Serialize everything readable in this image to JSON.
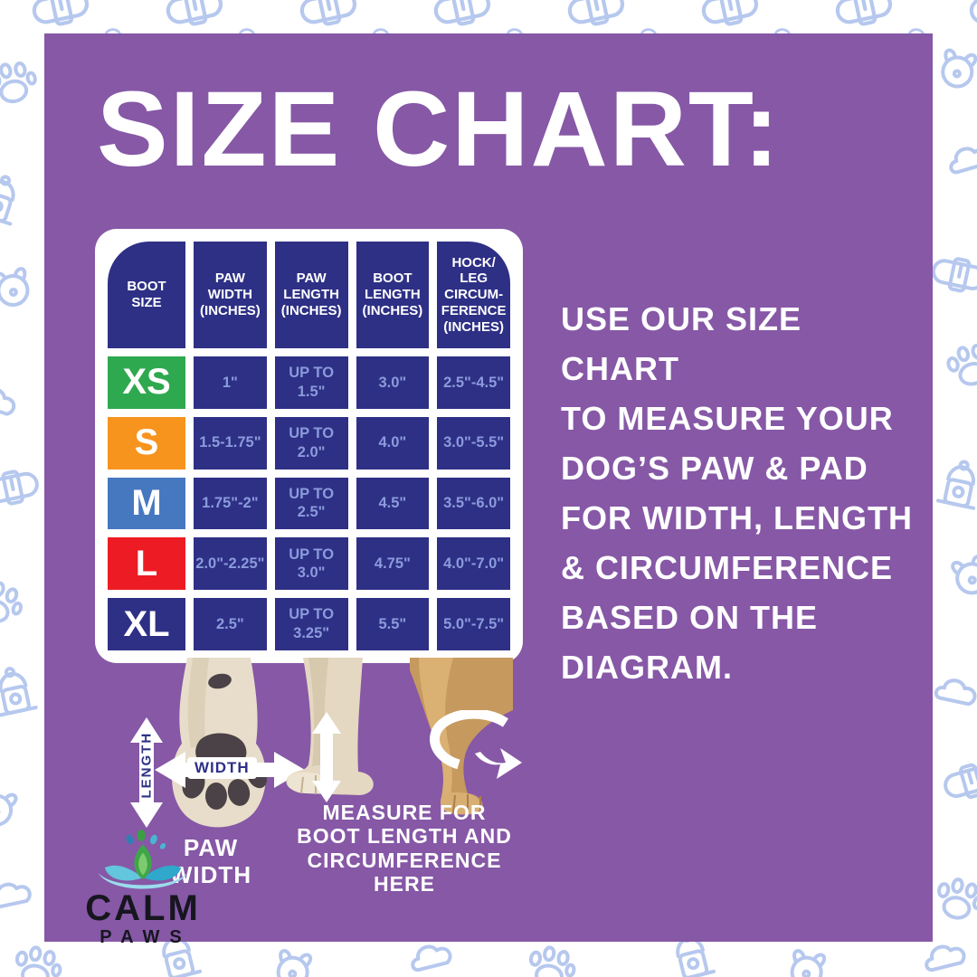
{
  "page": {
    "title": "SIZE CHART:"
  },
  "colors": {
    "background_purple": "#8658a6",
    "table_navy": "#2e3086",
    "value_text_blue": "#8b9bdb",
    "pattern_blue": "#b6c8ee",
    "size_xs_green": "#2fa94f",
    "size_s_orange": "#f7941e",
    "size_m_blue": "#4678c0",
    "size_l_red": "#ed1c24",
    "size_xl_navy": "#2e3086"
  },
  "size_table": {
    "headers": [
      "BOOT\nSIZE",
      "PAW\nWIDTH\n(INCHES)",
      "PAW\nLENGTH\n(INCHES)",
      "BOOT\nLENGTH\n(INCHES)",
      "HOCK/\nLEG\nCIRCUM-\nFERENCE\n(INCHES)"
    ],
    "rows": [
      {
        "size": "XS",
        "color": "#2fa94f",
        "paw_width": "1\"",
        "paw_length": "UP TO\n1.5\"",
        "boot_length": "3.0\"",
        "circumference": "2.5\"-4.5\""
      },
      {
        "size": "S",
        "color": "#f7941e",
        "paw_width": "1.5-1.75\"",
        "paw_length": "UP TO\n2.0\"",
        "boot_length": "4.0\"",
        "circumference": "3.0\"-5.5\""
      },
      {
        "size": "M",
        "color": "#4678c0",
        "paw_width": "1.75\"-2\"",
        "paw_length": "UP TO\n2.5\"",
        "boot_length": "4.5\"",
        "circumference": "3.5\"-6.0\""
      },
      {
        "size": "L",
        "color": "#ed1c24",
        "paw_width": "2.0\"-2.25\"",
        "paw_length": "UP TO\n3.0\"",
        "boot_length": "4.75\"",
        "circumference": "4.0\"-7.0\""
      },
      {
        "size": "XL",
        "color": "#2e3086",
        "paw_width": "2.5\"",
        "paw_length": "UP TO\n3.25\"",
        "boot_length": "5.5\"",
        "circumference": "5.0\"-7.5\""
      }
    ]
  },
  "description": {
    "text": "USE OUR SIZE CHART\nTO MEASURE YOUR\nDOG’S PAW & PAD\nFOR WIDTH, LENGTH\n& CIRCUMFERENCE\nBASED ON THE\nDIAGRAM."
  },
  "paw_diagram": {
    "length_label": "LENGTH",
    "width_label": "WIDTH",
    "caption": "PAW\nWIDTH"
  },
  "leg_diagram": {
    "caption": "MEASURE FOR\nBOOT LENGTH AND\nCIRCUMFERENCE HERE"
  },
  "logo": {
    "brand": "CALM",
    "sub_brand": "PAWS"
  },
  "border_pattern": {
    "icons": [
      "dog-collar",
      "paw-print",
      "fire-hydrant",
      "dog-face",
      "cloud"
    ]
  },
  "chart_data": {
    "type": "table",
    "title": "SIZE CHART:",
    "columns": [
      "BOOT SIZE",
      "PAW WIDTH (INCHES)",
      "PAW LENGTH (INCHES)",
      "BOOT LENGTH (INCHES)",
      "HOCK/LEG CIRCUMFERENCE (INCHES)"
    ],
    "rows": [
      [
        "XS",
        "1\"",
        "UP TO 1.5\"",
        "3.0\"",
        "2.5\"-4.5\""
      ],
      [
        "S",
        "1.5-1.75\"",
        "UP TO 2.0\"",
        "4.0\"",
        "3.0\"-5.5\""
      ],
      [
        "M",
        "1.75\"-2\"",
        "UP TO 2.5\"",
        "4.5\"",
        "3.5\"-6.0\""
      ],
      [
        "L",
        "2.0\"-2.25\"",
        "UP TO 3.0\"",
        "4.75\"",
        "4.0\"-7.0\""
      ],
      [
        "XL",
        "2.5\"",
        "UP TO 3.25\"",
        "5.5\"",
        "5.0\"-7.5\""
      ]
    ],
    "row_colors": {
      "XS": "#2fa94f",
      "S": "#f7941e",
      "M": "#4678c0",
      "L": "#ed1c24",
      "XL": "#2e3086"
    }
  }
}
